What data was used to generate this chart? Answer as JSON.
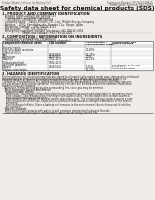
{
  "bg_color": "#f0ede8",
  "header_top_left": "Product Name: Lithium Ion Battery Cell",
  "header_top_right": "Substance Number: SFU9224-00910\nEstablished / Revision: Dec.7.2010",
  "main_title": "Safety data sheet for chemical products (SDS)",
  "section1_title": "1. PRODUCT AND COMPANY IDENTIFICATION",
  "section1_items": [
    "Product name: Lithium Ion Battery Cell",
    "Product code: Cylindrical-type cell",
    "   SFI-86500, SFI-86500L, SFI-86500A",
    "Company name:   Sanyo Electric, Co., Ltd., Mobile Energy Company",
    "Address:   2001, Kamizaike-cho, Sumoto-City, Hyogo, Japan",
    "Telephone number:   +81-799-26-4111",
    "Fax number:   +81-799-26-4125",
    "Emergency telephone number (daytime): +81-799-26-3662",
    "                    (Night and holiday): +81-799-26-4101"
  ],
  "section2_title": "2. COMPOSITION / INFORMATION ON INGREDIENTS",
  "section2_intro": "Substance or preparation: Preparation",
  "section2_sub": "Information about the chemical nature of product:",
  "table_headers": [
    "Component/chemical name",
    "CAS number",
    "Concentration /\nConcentration range",
    "Classification and\nhazard labeling"
  ],
  "table_subheader": "Several name",
  "table_rows": [
    [
      "Lithium cobalt tantalate",
      "-",
      "30-60%",
      ""
    ],
    [
      "(LiMnCoTi(O)2)",
      "",
      "",
      ""
    ],
    [
      "Iron",
      "7439-89-6",
      "15-25%",
      ""
    ],
    [
      "Aluminum",
      "7429-90-5",
      "2-5%",
      ""
    ],
    [
      "Graphite",
      "7782-42-5",
      "10-25%",
      ""
    ],
    [
      "(flaked graphite)",
      "7782-42-5",
      "",
      ""
    ],
    [
      "(artificial graphite)",
      "",
      "",
      ""
    ],
    [
      "Copper",
      "7440-50-8",
      "5-15%",
      "Sensitization of the skin\ngroup No.2"
    ],
    [
      "Organic electrolyte",
      "-",
      "10-20%",
      "Inflammable liquid"
    ]
  ],
  "section3_title": "3. HAZARDS IDENTIFICATION",
  "section3_para1": "For the battery cell, chemical materials are stored in a hermetically sealed metal case, designed to withstand",
  "section3_para2": "temperatures or pressures generated during normal use. As a result, during normal use, there is no",
  "section3_para3": "physical danger of ignition or explosion and therefore danger of hazardous materials leakage.",
  "section3_para4": "   However, if exposed to a fire, added mechanical shocks, decomposed, when electrolyte may leak use,",
  "section3_para5": "the gas release vent can be operated. The battery cell case will be breached at fire extreme. Hazardous",
  "section3_para6": "materials may be released.",
  "section3_para7": "   Moreover, if heated strongly by the surrounding fire, toxic gas may be emitted.",
  "section3_bullet1": "Most important hazard and effects:",
  "section3_human": "Human health effects:",
  "section3_inhale": "Inhalation: The release of the electrolyte has an anesthesia action and stimulates in respiratory tract.",
  "section3_skin1": "Skin contact: The release of the electrolyte stimulates a skin. The electrolyte skin contact causes a",
  "section3_skin2": "sore and stimulation on the skin.",
  "section3_eye1": "Eye contact: The release of the electrolyte stimulates eyes. The electrolyte eye contact causes a sore",
  "section3_eye2": "and stimulation on the eye. Especially, a substance that causes a strong inflammation of the eyes is",
  "section3_eye3": "contained.",
  "section3_env1": "Environmental effects: Since a battery cell remains in the environment, do not throw out it into the",
  "section3_env2": "environment.",
  "section3_bullet2": "Specific hazards:",
  "section3_sp1": "If the electrolyte contacts with water, it will generate detrimental hydrogen fluoride.",
  "section3_sp2": "Since the used electrolyte is inflammable liquid, do not bring close to fire."
}
